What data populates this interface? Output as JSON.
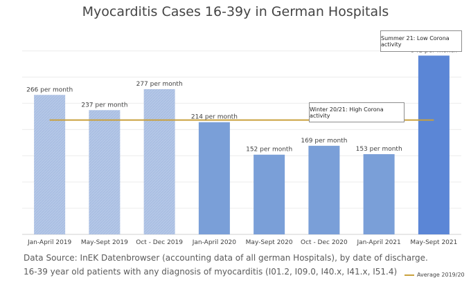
{
  "chart_data": {
    "type": "bar",
    "title": "Myocarditis Cases 16-39y in German Hospitals",
    "categories": [
      "Jan-April 2019",
      "May-Sept 2019",
      "Oct - Dec 2019",
      "Jan-April 2020",
      "May-Sept 2020",
      "Oct - Dec 2020",
      "Jan-April 2021",
      "May-Sept 2021"
    ],
    "values": [
      266,
      237,
      277,
      214,
      152,
      169,
      153,
      341
    ],
    "data_labels": [
      "266 per month",
      "237 per month",
      "277 per month",
      "214 per month",
      "152 per month",
      "169 per month",
      "153 per month",
      "341 per month"
    ],
    "bar_colors": [
      "#b4c7e7",
      "#b4c7e7",
      "#b4c7e7",
      "#7a9fd8",
      "#7a9fd8",
      "#7a9fd8",
      "#7a9fd8",
      "#5b86d6"
    ],
    "hatched": [
      true,
      true,
      true,
      false,
      false,
      false,
      false,
      false
    ],
    "ylim": [
      0,
      360
    ],
    "grid": true,
    "reference_line": {
      "name": "Average 2019/20",
      "value": 218,
      "color": "#c9a13c"
    },
    "annotations": [
      "Summer 21: Low Corona activity",
      "Winter 20/21: High Corona activity"
    ],
    "legend_position": "bottom-right"
  },
  "source_lines": [
    "Data Source: InEK Datenbrowser (accounting data of all german Hospitals), by date of discharge.",
    "16-39 year old patients with any diagnosis of myocarditis (I01.2, I09.0, I40.x, I41.x, I51.4)"
  ]
}
